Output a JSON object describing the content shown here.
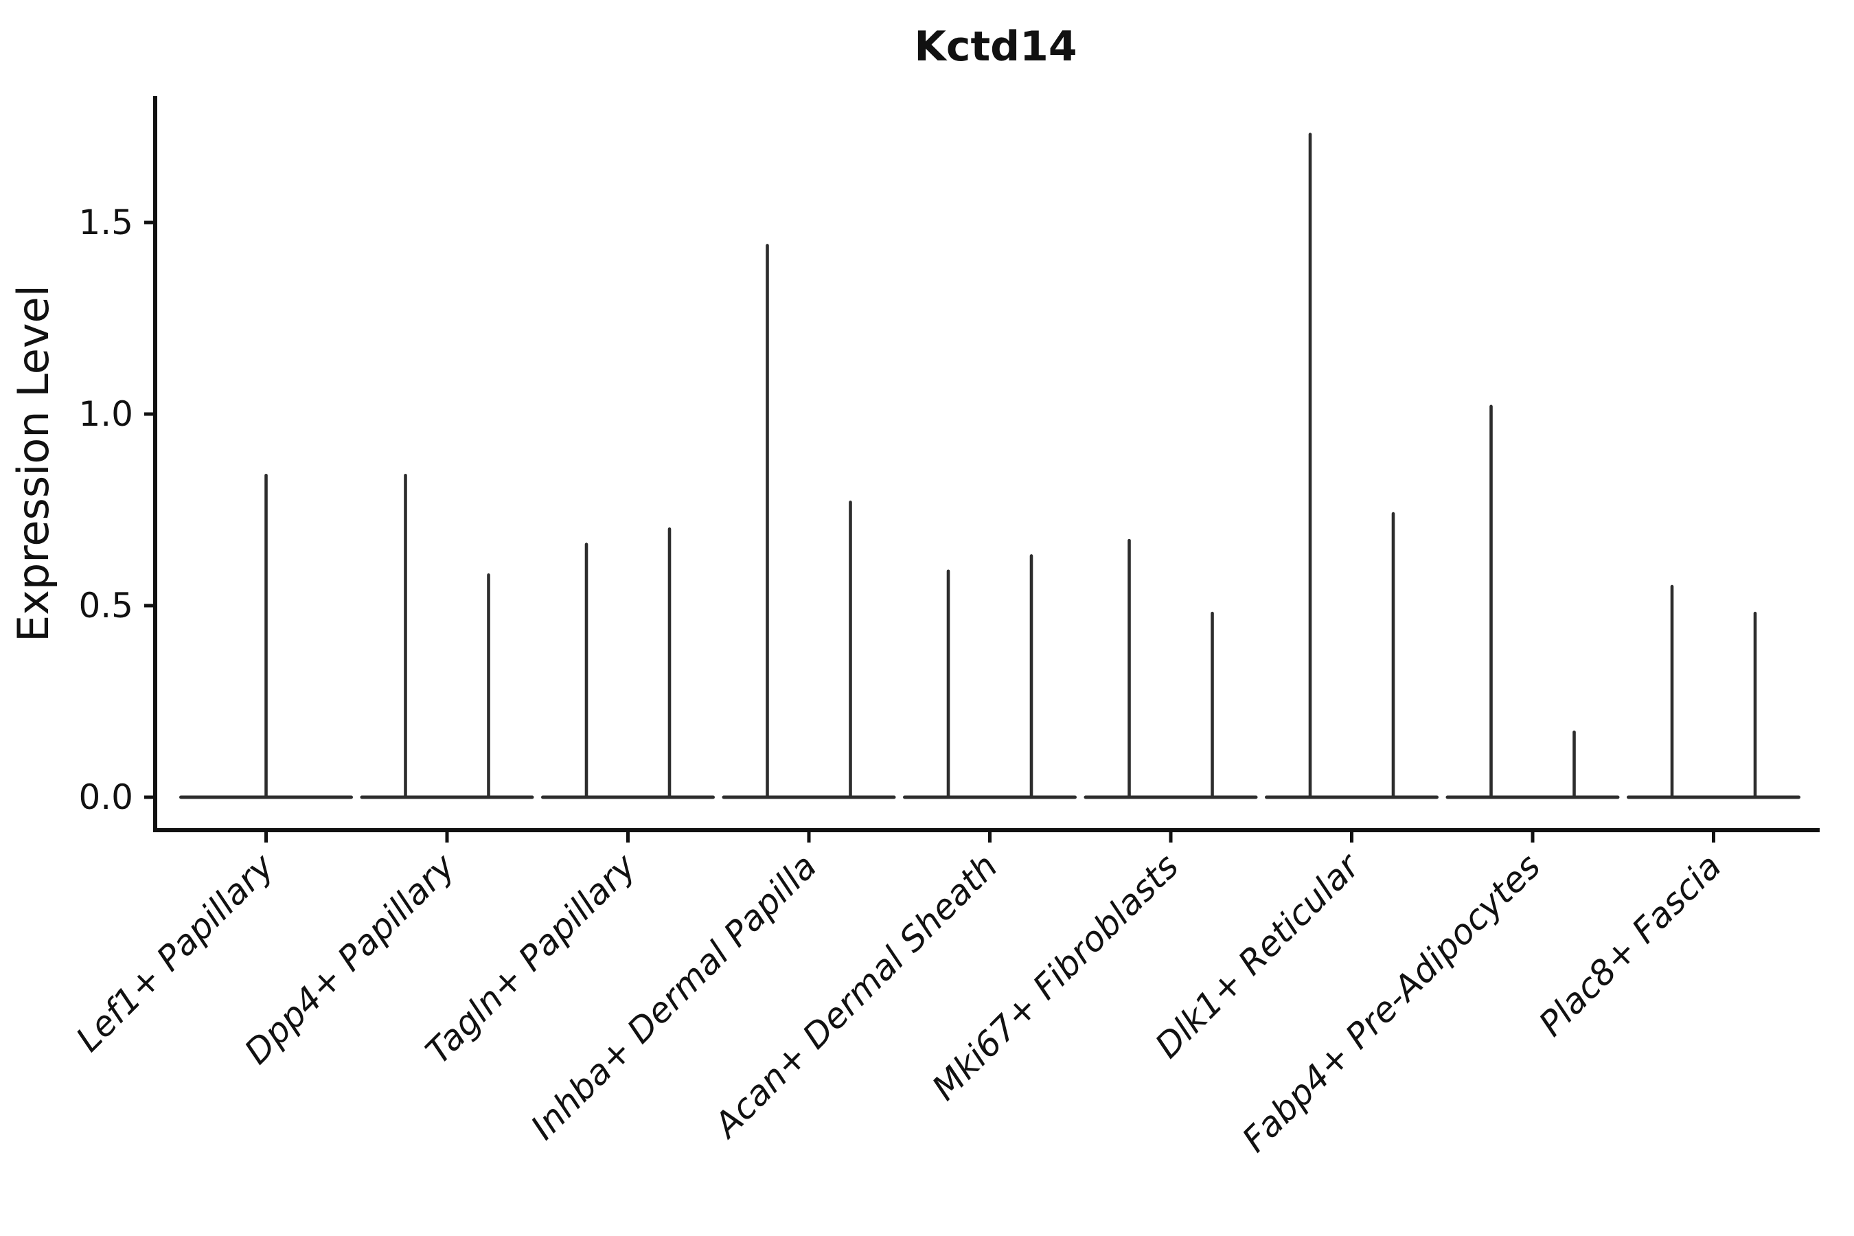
{
  "chart_data": {
    "type": "violin",
    "title": "Kctd14",
    "xlabel": "",
    "ylabel": "Expression Level",
    "ylim": [
      -0.09,
      1.83
    ],
    "yticks": [
      0.0,
      0.5,
      1.0,
      1.5
    ],
    "ytick_labels": [
      "0.0",
      "0.5",
      "1.0",
      "1.5"
    ],
    "grid": false,
    "legend": "none",
    "violin_style": "density collapsed at 0 with thin vertical tail up to the maximum expression value",
    "categories": [
      "Lef1+ Papillary",
      "Dpp4+ Papillary",
      "Tagln+ Papillary",
      "Inhba+ Dermal Papilla",
      "Acan+ Dermal Sheath",
      "Mki67+ Fibroblasts",
      "Dlk1+ Reticular",
      "Fabp4+ Pre-Adipocytes",
      "Plac8+ Fascia"
    ],
    "groups": [
      {
        "category": "Lef1+ Papillary",
        "violins": [
          {
            "max": 0.84
          }
        ]
      },
      {
        "category": "Dpp4+ Papillary",
        "violins": [
          {
            "max": 0.84
          },
          {
            "max": 0.58
          }
        ]
      },
      {
        "category": "Tagln+ Papillary",
        "violins": [
          {
            "max": 0.66
          },
          {
            "max": 0.7
          }
        ]
      },
      {
        "category": "Inhba+ Dermal Papilla",
        "violins": [
          {
            "max": 1.44
          },
          {
            "max": 0.77
          }
        ]
      },
      {
        "category": "Acan+ Dermal Sheath",
        "violins": [
          {
            "max": 0.59
          },
          {
            "max": 0.63
          }
        ]
      },
      {
        "category": "Mki67+ Fibroblasts",
        "violins": [
          {
            "max": 0.67
          },
          {
            "max": 0.48
          }
        ]
      },
      {
        "category": "Dlk1+ Reticular",
        "violins": [
          {
            "max": 1.73
          },
          {
            "max": 0.74
          }
        ]
      },
      {
        "category": "Fabp4+ Pre-Adipocytes",
        "violins": [
          {
            "max": 1.02
          },
          {
            "max": 0.17
          }
        ]
      },
      {
        "category": "Plac8+ Fascia",
        "violins": [
          {
            "max": 0.55
          },
          {
            "max": 0.48
          }
        ]
      }
    ],
    "colors": {
      "axis": "#111111",
      "violin": "#2d2d2d",
      "background": "#ffffff"
    }
  }
}
